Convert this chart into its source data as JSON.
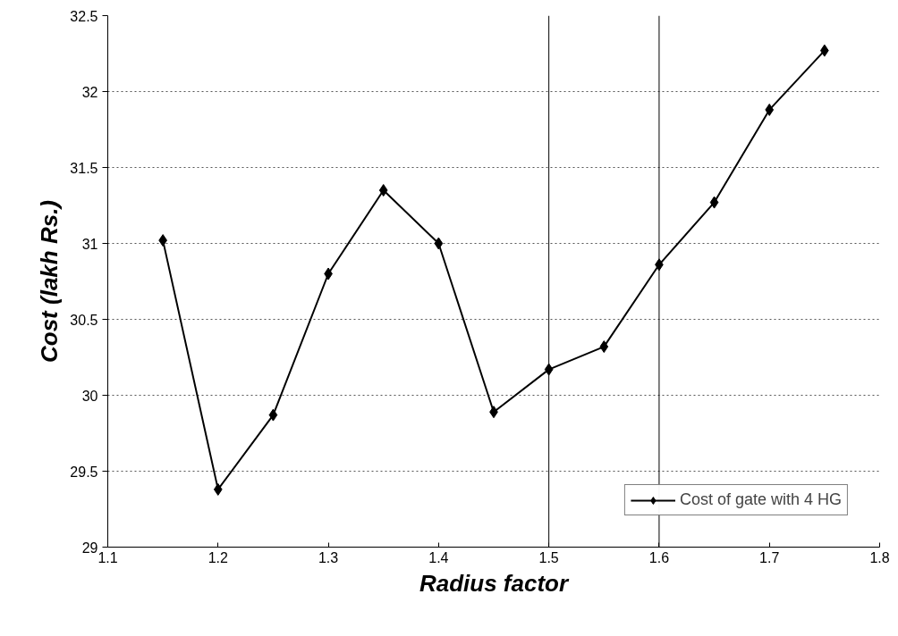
{
  "chart_data": {
    "type": "line",
    "xlabel": "Radius factor",
    "ylabel": "Cost (lakh Rs.)",
    "x": [
      1.15,
      1.2,
      1.25,
      1.3,
      1.35,
      1.4,
      1.45,
      1.5,
      1.55,
      1.6,
      1.65,
      1.7,
      1.75
    ],
    "series": [
      {
        "name": "Cost of gate with 4 HG",
        "color": "#000000",
        "values": [
          31.02,
          29.38,
          29.87,
          30.8,
          31.35,
          31.0,
          29.89,
          30.17,
          30.32,
          30.86,
          31.27,
          31.88,
          32.27
        ]
      }
    ],
    "xlim": [
      1.1,
      1.8
    ],
    "xticks": [
      1.1,
      1.2,
      1.3,
      1.4,
      1.5,
      1.6,
      1.7,
      1.8
    ],
    "ylim": [
      29,
      32.5
    ],
    "yticks": [
      29,
      29.5,
      30,
      30.5,
      31,
      31.5,
      32,
      32.5
    ],
    "grid": "y",
    "legend": "bottom right",
    "marker": "diamond",
    "line_style": "solid",
    "ref_lines": [
      {
        "axis": "x",
        "value": 1.5,
        "color": "#000000"
      },
      {
        "axis": "x",
        "value": 1.6,
        "color": "#000000"
      }
    ]
  }
}
